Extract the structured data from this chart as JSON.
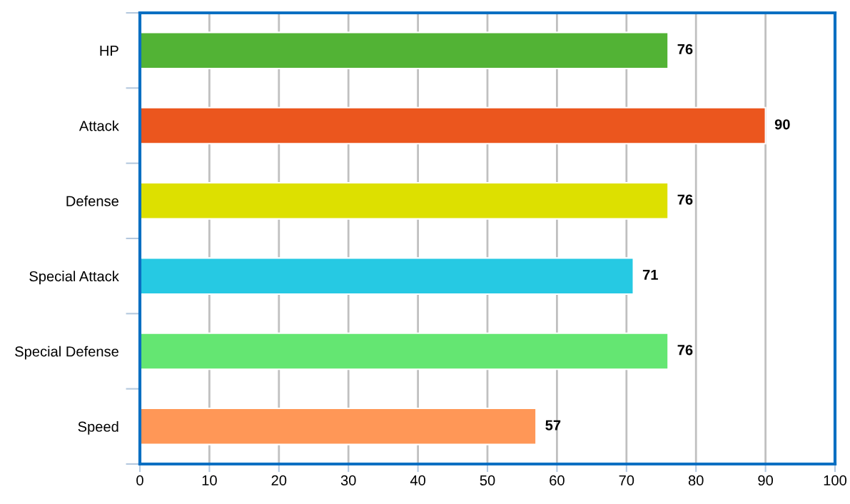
{
  "chart_data": {
    "type": "bar",
    "orientation": "horizontal",
    "categories": [
      "HP",
      "Attack",
      "Defense",
      "Special Attack",
      "Special Defense",
      "Speed"
    ],
    "values": [
      76,
      90,
      76,
      71,
      76,
      57
    ],
    "colors": [
      "#52b335",
      "#eb561e",
      "#dde000",
      "#26c9e3",
      "#64e672",
      "#ff9757"
    ],
    "xlim": [
      0,
      100
    ],
    "xticks": [
      0,
      10,
      20,
      30,
      40,
      50,
      60,
      70,
      80,
      90,
      100
    ],
    "grid": "x",
    "data_labels": true
  }
}
